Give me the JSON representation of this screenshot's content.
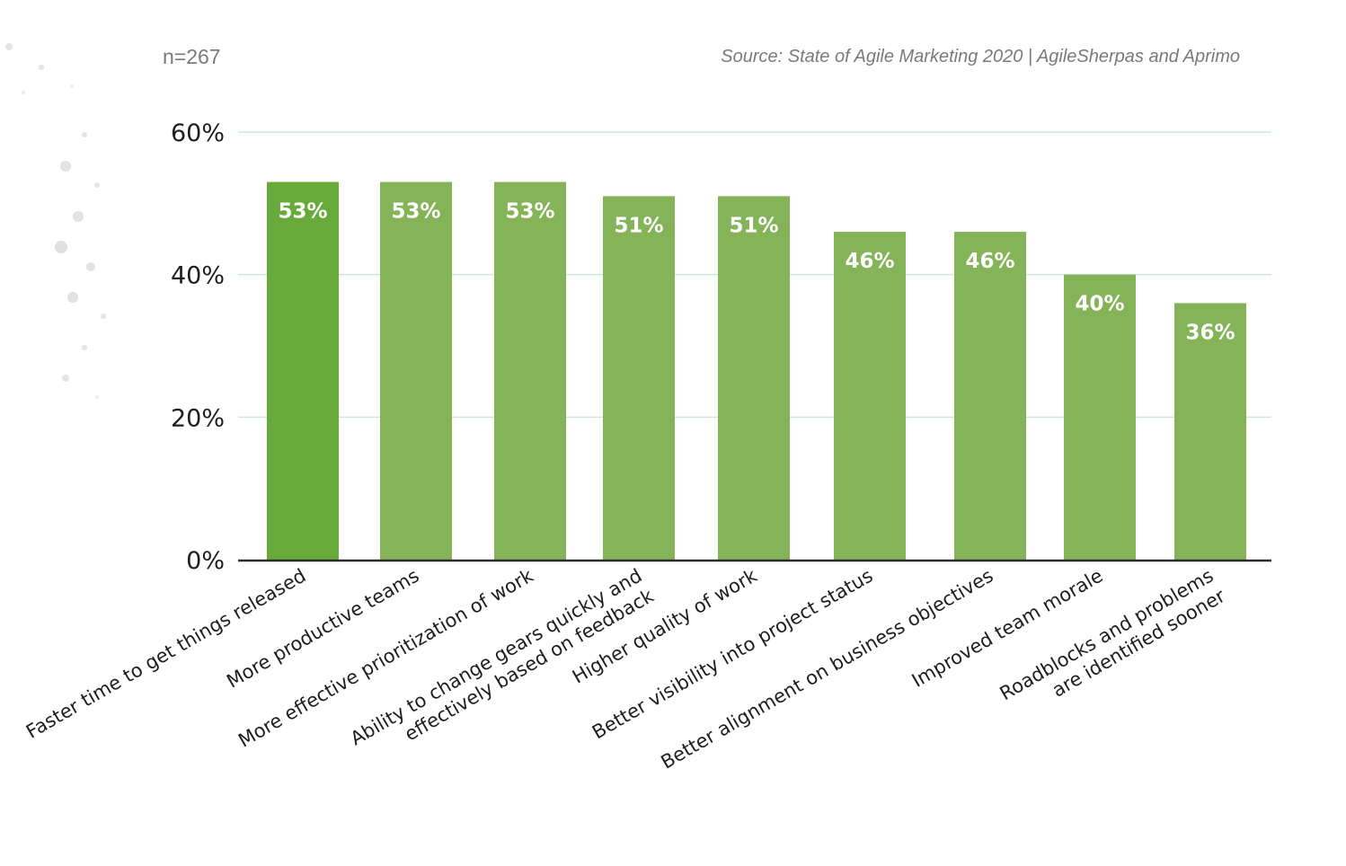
{
  "header": {
    "sample_size": "n=267",
    "source": "Source: State of Agile Marketing 2020 | AgileSherpas and Aprimo"
  },
  "colors": {
    "highlight_bar": "#67aa3a",
    "bar": "#85b358",
    "grid": "#cfe6df",
    "axis": "#2b2b2b"
  },
  "chart_data": {
    "type": "bar",
    "title": "",
    "xlabel": "",
    "ylabel": "",
    "ylim": [
      0,
      60
    ],
    "y_ticks": [
      {
        "value": 0,
        "label": "0%"
      },
      {
        "value": 20,
        "label": "20%"
      },
      {
        "value": 40,
        "label": "40%"
      },
      {
        "value": 60,
        "label": "60%"
      }
    ],
    "grid": true,
    "legend": "none",
    "categories": [
      [
        "Faster time to get things released"
      ],
      [
        "More productive teams"
      ],
      [
        "More effective prioritization of work"
      ],
      [
        "Ability to change gears quickly and",
        "effectively based on feedback"
      ],
      [
        "Higher quality of work"
      ],
      [
        "Better visibility into project status"
      ],
      [
        "Better alignment on business objectives"
      ],
      [
        "Improved team morale"
      ],
      [
        "Roadblocks and problems",
        "are identified sooner"
      ]
    ],
    "values": [
      53,
      53,
      53,
      51,
      51,
      46,
      46,
      40,
      36
    ],
    "value_labels": [
      "53%",
      "53%",
      "53%",
      "51%",
      "51%",
      "46%",
      "46%",
      "40%",
      "36%"
    ],
    "highlight_index": 0
  }
}
